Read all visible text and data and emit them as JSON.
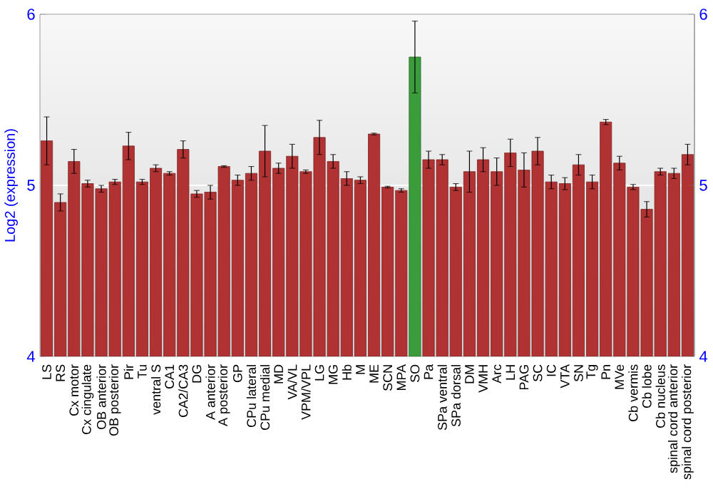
{
  "chart_data": {
    "type": "bar",
    "ylabel": "Log2 (expression)",
    "categories": [
      "LS",
      "RS",
      "Cx motor",
      "Cx cingulate",
      "OB anterior",
      "OB posterior",
      "Pir",
      "Tu",
      "ventral S",
      "CA1",
      "CA2/CA3",
      "DG",
      "A anterior",
      "A posterior",
      "GP",
      "CPu lateral",
      "CPu medial",
      "MD",
      "VA/VL",
      "VPM/VPL",
      "LG",
      "MG",
      "Hb",
      "M",
      "ME",
      "SCN",
      "MPA",
      "SO",
      "Pa",
      "SPa ventral",
      "SPa dorsal",
      "DM",
      "VMH",
      "Arc",
      "LH",
      "PAG",
      "SC",
      "IC",
      "VTA",
      "SN",
      "Tg",
      "Pn",
      "MVe",
      "Cb vermis",
      "Cb lobe",
      "Cb nucleus",
      "spinal cord anterior",
      "spinal cord posterior"
    ],
    "values": [
      5.26,
      4.9,
      5.14,
      5.01,
      4.98,
      5.02,
      5.23,
      5.02,
      5.1,
      5.07,
      5.21,
      4.95,
      4.96,
      5.11,
      5.03,
      5.07,
      5.2,
      5.1,
      5.17,
      5.08,
      5.28,
      5.14,
      5.04,
      5.03,
      5.3,
      4.99,
      4.97,
      5.75,
      5.15,
      5.15,
      4.99,
      5.08,
      5.15,
      5.08,
      5.19,
      5.09,
      5.2,
      5.02,
      5.01,
      5.12,
      5.02,
      5.37,
      5.13,
      4.99,
      4.86,
      5.08,
      5.07,
      5.18
    ],
    "errors": [
      0.14,
      0.05,
      0.07,
      0.02,
      0.02,
      0.015,
      0.08,
      0.015,
      0.02,
      0.01,
      0.05,
      0.02,
      0.04,
      0.005,
      0.03,
      0.04,
      0.15,
      0.03,
      0.07,
      0.01,
      0.1,
      0.04,
      0.04,
      0.02,
      0.005,
      0.005,
      0.01,
      0.21,
      0.05,
      0.03,
      0.02,
      0.12,
      0.07,
      0.08,
      0.08,
      0.1,
      0.08,
      0.04,
      0.035,
      0.06,
      0.04,
      0.015,
      0.04,
      0.015,
      0.045,
      0.02,
      0.03,
      0.06
    ],
    "colors": [
      "#b03232",
      "#b03232",
      "#b03232",
      "#b03232",
      "#b03232",
      "#b03232",
      "#b03232",
      "#b03232",
      "#b03232",
      "#b03232",
      "#b03232",
      "#b03232",
      "#b03232",
      "#b03232",
      "#b03232",
      "#b03232",
      "#b03232",
      "#b03232",
      "#b03232",
      "#b03232",
      "#b03232",
      "#b03232",
      "#b03232",
      "#b03232",
      "#b03232",
      "#b03232",
      "#b03232",
      "#3a9c3a",
      "#b03232",
      "#b03232",
      "#b03232",
      "#b03232",
      "#b03232",
      "#b03232",
      "#b03232",
      "#b03232",
      "#b03232",
      "#b03232",
      "#b03232",
      "#b03232",
      "#b03232",
      "#b03232",
      "#b03232",
      "#b03232",
      "#b03232",
      "#b03232",
      "#b03232",
      "#b03232"
    ],
    "ylim": [
      4,
      6
    ],
    "yticks": [
      4,
      5,
      6
    ],
    "y2lim": [
      4,
      6
    ],
    "y2ticks": [
      4,
      5,
      6
    ],
    "grid": "y"
  }
}
